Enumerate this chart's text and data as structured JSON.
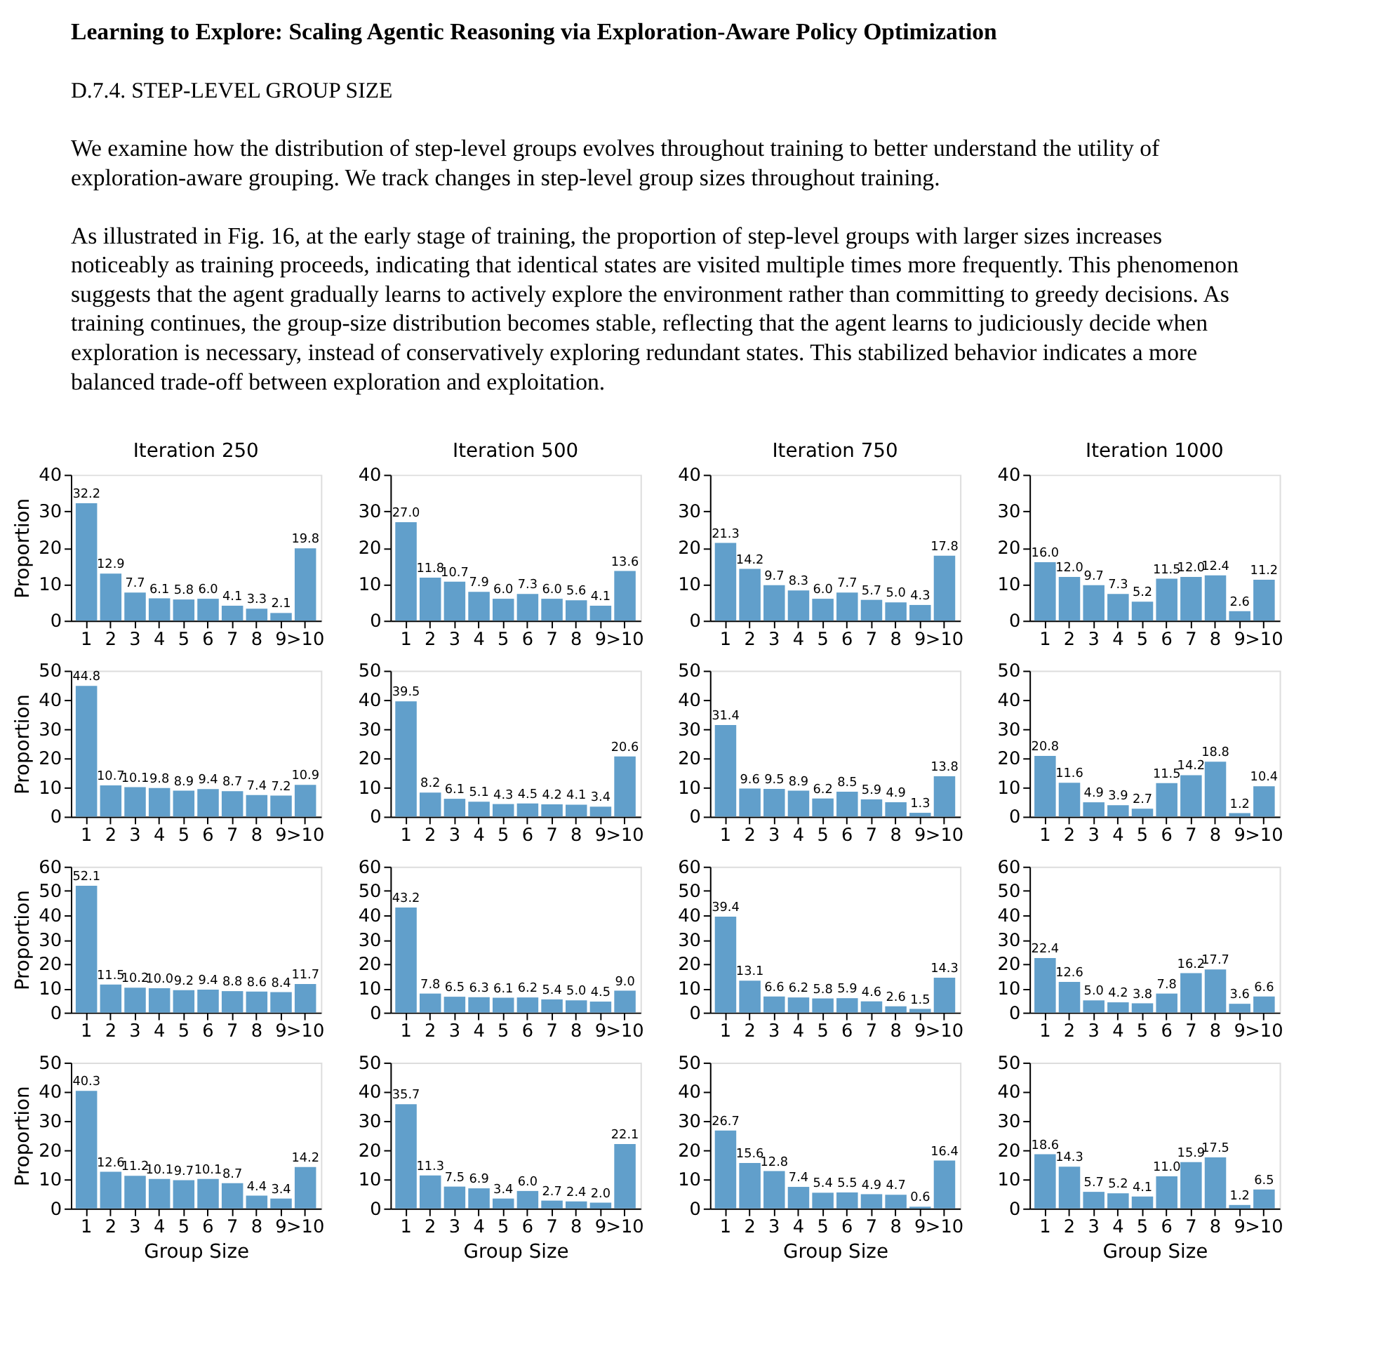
{
  "chart_data": [
    {
      "type": "bar",
      "title": "Iteration 250",
      "ylabel": "Proportion",
      "categories": [
        "1",
        "2",
        "3",
        "4",
        "5",
        "6",
        "7",
        "8",
        "9",
        ">10"
      ],
      "values": [
        32.2,
        12.9,
        7.7,
        6.1,
        5.8,
        6.0,
        4.1,
        3.3,
        2.1,
        19.8
      ],
      "value_labels": [
        "32.2",
        "12.9",
        "7.7",
        "6.1",
        "5.8",
        "6.0",
        "4.1",
        "3.3",
        "2.1",
        "19.8"
      ],
      "color": "#619fcb",
      "ylim": [
        0,
        40
      ],
      "yticks": [
        0,
        10,
        20,
        30,
        40
      ],
      "annotations": [
        "Learning to Explore: Scaling Agentic Reasoning via Exploration-Aware Policy Optimization",
        "D.7.4. STEP-LEVEL GROUP SIZE",
        "We examine how the distribution of step-level groups evolves throughout training to better understand the utility of exploration-aware grouping. We track changes in step-level group sizes throughout training.",
        "As illustrated in Fig. 16, at the early stage of training, the proportion of step-level groups with larger sizes increases noticeably as training proceeds, indicating that identical states are visited multiple times more frequently. This phenomenon suggests that the agent gradually learns to actively explore the environment rather than committing to greedy decisions. As training continues, the group-size distribution becomes stable, reflecting that the agent learns to judiciously decide when exploration is necessary, instead of conservatively exploring redundant states. This stabilized behavior indicates a more balanced trade-off between exploration and exploitation."
      ]
    },
    {
      "type": "bar",
      "title": "Iteration 500",
      "categories": [
        "1",
        "2",
        "3",
        "4",
        "5",
        "6",
        "7",
        "8",
        "9",
        ">10"
      ],
      "values": [
        27.0,
        11.8,
        10.7,
        7.9,
        6.0,
        7.3,
        6.0,
        5.6,
        4.1,
        13.6
      ],
      "value_labels": [
        "27.0",
        "11.8",
        "10.7",
        "7.9",
        "6.0",
        "7.3",
        "6.0",
        "5.6",
        "4.1",
        "13.6"
      ],
      "color": "#619fcb",
      "ylim": [
        0,
        40
      ],
      "yticks": [
        0,
        10,
        20,
        30,
        40
      ]
    },
    {
      "type": "bar",
      "title": "Iteration 750",
      "categories": [
        "1",
        "2",
        "3",
        "4",
        "5",
        "6",
        "7",
        "8",
        "9",
        ">10"
      ],
      "values": [
        21.3,
        14.2,
        9.7,
        8.3,
        6.0,
        7.7,
        5.7,
        5.0,
        4.3,
        17.8
      ],
      "value_labels": [
        "21.3",
        "14.2",
        "9.7",
        "8.3",
        "6.0",
        "7.7",
        "5.7",
        "5.0",
        "4.3",
        "17.8"
      ],
      "color": "#619fcb",
      "ylim": [
        0,
        40
      ],
      "yticks": [
        0,
        10,
        20,
        30,
        40
      ]
    },
    {
      "type": "bar",
      "title": "Iteration 1000",
      "categories": [
        "1",
        "2",
        "3",
        "4",
        "5",
        "6",
        "7",
        "8",
        "9",
        ">10"
      ],
      "values": [
        16.0,
        12.0,
        9.7,
        7.3,
        5.2,
        11.5,
        12.0,
        12.4,
        2.6,
        11.2
      ],
      "value_labels": [
        "16.0",
        "12.0",
        "9.7",
        "7.3",
        "5.2",
        "11.5",
        "12.0",
        "12.4",
        "2.6",
        "11.2"
      ],
      "color": "#619fcb",
      "ylim": [
        0,
        40
      ],
      "yticks": [
        0,
        10,
        20,
        30,
        40
      ]
    },
    {
      "type": "bar",
      "ylabel": "Proportion",
      "categories": [
        "1",
        "2",
        "3",
        "4",
        "5",
        "6",
        "7",
        "8",
        "9",
        ">10"
      ],
      "values": [
        44.8,
        10.7,
        10.1,
        9.8,
        8.9,
        9.4,
        8.7,
        7.4,
        7.2,
        10.9
      ],
      "value_labels": [
        "44.8",
        "10.7",
        "10.1",
        "9.8",
        "8.9",
        "9.4",
        "8.7",
        "7.4",
        "7.2",
        "10.9"
      ],
      "color": "#619fcb",
      "ylim": [
        0,
        50
      ],
      "yticks": [
        0,
        10,
        20,
        30,
        40,
        50
      ]
    },
    {
      "type": "bar",
      "categories": [
        "1",
        "2",
        "3",
        "4",
        "5",
        "6",
        "7",
        "8",
        "9",
        ">10"
      ],
      "values": [
        39.5,
        8.2,
        6.1,
        5.1,
        4.3,
        4.5,
        4.2,
        4.1,
        3.4,
        20.6
      ],
      "value_labels": [
        "39.5",
        "8.2",
        "6.1",
        "5.1",
        "4.3",
        "4.5",
        "4.2",
        "4.1",
        "3.4",
        "20.6"
      ],
      "color": "#619fcb",
      "ylim": [
        0,
        50
      ],
      "yticks": [
        0,
        10,
        20,
        30,
        40,
        50
      ]
    },
    {
      "type": "bar",
      "categories": [
        "1",
        "2",
        "3",
        "4",
        "5",
        "6",
        "7",
        "8",
        "9",
        ">10"
      ],
      "values": [
        31.4,
        9.6,
        9.5,
        8.9,
        6.2,
        8.5,
        5.9,
        4.9,
        1.3,
        13.8
      ],
      "value_labels": [
        "31.4",
        "9.6",
        "9.5",
        "8.9",
        "6.2",
        "8.5",
        "5.9",
        "4.9",
        "1.3",
        "13.8"
      ],
      "color": "#619fcb",
      "ylim": [
        0,
        50
      ],
      "yticks": [
        0,
        10,
        20,
        30,
        40,
        50
      ]
    },
    {
      "type": "bar",
      "categories": [
        "1",
        "2",
        "3",
        "4",
        "5",
        "6",
        "7",
        "8",
        "9",
        ">10"
      ],
      "values": [
        20.8,
        11.6,
        4.9,
        3.9,
        2.7,
        11.5,
        14.2,
        18.8,
        1.2,
        10.4
      ],
      "value_labels": [
        "20.8",
        "11.6",
        "4.9",
        "3.9",
        "2.7",
        "11.5",
        "14.2",
        "18.8",
        "1.2",
        "10.4"
      ],
      "color": "#619fcb",
      "ylim": [
        0,
        50
      ],
      "yticks": [
        0,
        10,
        20,
        30,
        40,
        50
      ]
    },
    {
      "type": "bar",
      "ylabel": "Proportion",
      "categories": [
        "1",
        "2",
        "3",
        "4",
        "5",
        "6",
        "7",
        "8",
        "9",
        ">10"
      ],
      "values": [
        52.1,
        11.5,
        10.2,
        10.0,
        9.2,
        9.4,
        8.8,
        8.6,
        8.4,
        11.7
      ],
      "value_labels": [
        "52.1",
        "11.5",
        "10.2",
        "10.0",
        "9.2",
        "9.4",
        "8.8",
        "8.6",
        "8.4",
        "11.7"
      ],
      "color": "#619fcb",
      "ylim": [
        0,
        60
      ],
      "yticks": [
        0,
        10,
        20,
        30,
        40,
        50,
        60
      ]
    },
    {
      "type": "bar",
      "categories": [
        "1",
        "2",
        "3",
        "4",
        "5",
        "6",
        "7",
        "8",
        "9",
        ">10"
      ],
      "values": [
        43.2,
        7.8,
        6.5,
        6.3,
        6.1,
        6.2,
        5.4,
        5.0,
        4.5,
        9.0
      ],
      "value_labels": [
        "43.2",
        "7.8",
        "6.5",
        "6.3",
        "6.1",
        "6.2",
        "5.4",
        "5.0",
        "4.5",
        "9.0"
      ],
      "color": "#619fcb",
      "ylim": [
        0,
        60
      ],
      "yticks": [
        0,
        10,
        20,
        30,
        40,
        50,
        60
      ]
    },
    {
      "type": "bar",
      "categories": [
        "1",
        "2",
        "3",
        "4",
        "5",
        "6",
        "7",
        "8",
        "9",
        ">10"
      ],
      "values": [
        39.4,
        13.1,
        6.6,
        6.2,
        5.8,
        5.9,
        4.6,
        2.6,
        1.5,
        14.3
      ],
      "value_labels": [
        "39.4",
        "13.1",
        "6.6",
        "6.2",
        "5.8",
        "5.9",
        "4.6",
        "2.6",
        "1.5",
        "14.3"
      ],
      "color": "#619fcb",
      "ylim": [
        0,
        60
      ],
      "yticks": [
        0,
        10,
        20,
        30,
        40,
        50,
        60
      ]
    },
    {
      "type": "bar",
      "categories": [
        "1",
        "2",
        "3",
        "4",
        "5",
        "6",
        "7",
        "8",
        "9",
        ">10"
      ],
      "values": [
        22.4,
        12.6,
        5.0,
        4.2,
        3.8,
        7.8,
        16.2,
        17.7,
        3.6,
        6.6
      ],
      "value_labels": [
        "22.4",
        "12.6",
        "5.0",
        "4.2",
        "3.8",
        "7.8",
        "16.2",
        "17.7",
        "3.6",
        "6.6"
      ],
      "color": "#619fcb",
      "ylim": [
        0,
        60
      ],
      "yticks": [
        0,
        10,
        20,
        30,
        40,
        50,
        60
      ]
    },
    {
      "type": "bar",
      "ylabel": "Proportion",
      "xlabel": "Group Size",
      "categories": [
        "1",
        "2",
        "3",
        "4",
        "5",
        "6",
        "7",
        "8",
        "9",
        ">10"
      ],
      "values": [
        40.3,
        12.6,
        11.2,
        10.1,
        9.7,
        10.1,
        8.7,
        4.4,
        3.4,
        14.2
      ],
      "value_labels": [
        "40.3",
        "12.6",
        "11.2",
        "10.1",
        "9.7",
        "10.1",
        "8.7",
        "4.4",
        "3.4",
        "14.2"
      ],
      "color": "#619fcb",
      "ylim": [
        0,
        50
      ],
      "yticks": [
        0,
        10,
        20,
        30,
        40,
        50
      ]
    },
    {
      "type": "bar",
      "xlabel": "Group Size",
      "categories": [
        "1",
        "2",
        "3",
        "4",
        "5",
        "6",
        "7",
        "8",
        "9",
        ">10"
      ],
      "values": [
        35.7,
        11.3,
        7.5,
        6.9,
        3.4,
        6.0,
        2.7,
        2.4,
        2.0,
        22.1
      ],
      "value_labels": [
        "35.7",
        "11.3",
        "7.5",
        "6.9",
        "3.4",
        "6.0",
        "2.7",
        "2.4",
        "2.0",
        "22.1"
      ],
      "color": "#619fcb",
      "ylim": [
        0,
        50
      ],
      "yticks": [
        0,
        10,
        20,
        30,
        40,
        50
      ]
    },
    {
      "type": "bar",
      "xlabel": "Group Size",
      "categories": [
        "1",
        "2",
        "3",
        "4",
        "5",
        "6",
        "7",
        "8",
        "9",
        ">10"
      ],
      "values": [
        26.7,
        15.6,
        12.8,
        7.4,
        5.4,
        5.5,
        4.9,
        4.7,
        0.6,
        16.4
      ],
      "value_labels": [
        "26.7",
        "15.6",
        "12.8",
        "7.4",
        "5.4",
        "5.5",
        "4.9",
        "4.7",
        "0.6",
        "16.4"
      ],
      "color": "#619fcb",
      "ylim": [
        0,
        50
      ],
      "yticks": [
        0,
        10,
        20,
        30,
        40,
        50
      ]
    },
    {
      "type": "bar",
      "xlabel": "Group Size",
      "categories": [
        "1",
        "2",
        "3",
        "4",
        "5",
        "6",
        "7",
        "8",
        "9",
        ">10"
      ],
      "values": [
        18.6,
        14.3,
        5.7,
        5.2,
        4.1,
        11.0,
        15.9,
        17.5,
        1.2,
        6.5
      ],
      "value_labels": [
        "18.6",
        "14.3",
        "5.7",
        "5.2",
        "4.1",
        "11.0",
        "15.9",
        "17.5",
        "1.2",
        "6.5"
      ],
      "color": "#619fcb",
      "ylim": [
        0,
        50
      ],
      "yticks": [
        0,
        10,
        20,
        30,
        40,
        50
      ]
    }
  ]
}
